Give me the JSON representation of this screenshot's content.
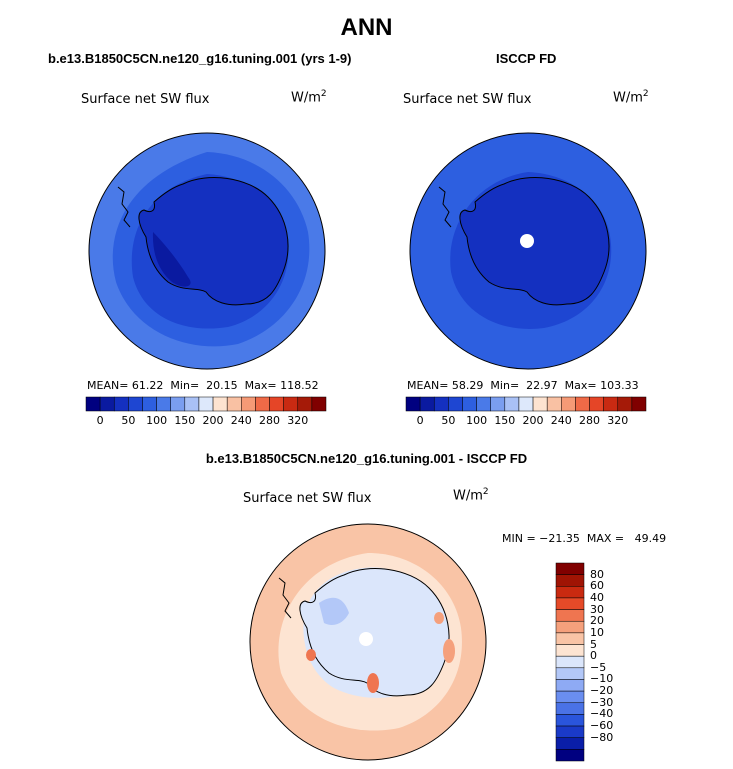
{
  "main_title": "ANN",
  "colors": {
    "abs_levels": [
      "#000080",
      "#0a1aa0",
      "#1430c0",
      "#1e46d2",
      "#2d5fe0",
      "#4a7ae8",
      "#7a9ef0",
      "#a9c1f6",
      "#dde8fb",
      "#fde3d0",
      "#f9c1a3",
      "#f59a76",
      "#ef6a47",
      "#e54527",
      "#c92a12",
      "#a51a08",
      "#800000"
    ],
    "diff_levels": [
      "#000080",
      "#0a1ea8",
      "#1a3ac8",
      "#2a55dc",
      "#4a72e6",
      "#6a8ef0",
      "#8eaaf4",
      "#b3c8f8",
      "#dbe6fb",
      "#fde4d2",
      "#f9c4a6",
      "#f5a07c",
      "#ef7550",
      "#e54a28",
      "#c92a10",
      "#a01404",
      "#800000"
    ]
  },
  "left_panel": {
    "subtitle": "b.e13.B1850C5CN.ne120_g16.tuning.001 (yrs 1-9)",
    "label": "Surface net SW flux",
    "units": "W/m",
    "units_exp": "2",
    "mean_label": "MEAN=",
    "mean": "61.22",
    "min_label": "Min=",
    "min": "20.15",
    "max_label": "Max=",
    "max": "118.52"
  },
  "right_panel": {
    "subtitle": "ISCCP FD",
    "label": "Surface net SW flux",
    "units": "W/m",
    "units_exp": "2",
    "mean_label": "MEAN=",
    "mean": "58.29",
    "min_label": "Min=",
    "min": "22.97",
    "max_label": "Max=",
    "max": "103.33"
  },
  "abs_colorbar_ticks": [
    "0",
    "50",
    "100",
    "150",
    "200",
    "240",
    "280",
    "320"
  ],
  "diff_panel": {
    "subtitle": "b.e13.B1850C5CN.ne120_g16.tuning.001 - ISCCP FD",
    "label": "Surface net SW flux",
    "units": "W/m",
    "units_exp": "2",
    "minmax": "MIN = −21.35  MAX =   49.49"
  },
  "diff_colorbar_ticks": [
    "80",
    "60",
    "40",
    "30",
    "20",
    "10",
    "5",
    "0",
    "−5",
    "−10",
    "−20",
    "−30",
    "−40",
    "−60",
    "−80"
  ]
}
